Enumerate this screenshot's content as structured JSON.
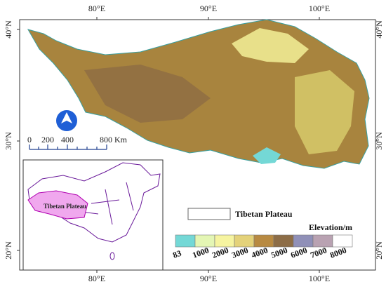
{
  "graticule": {
    "top": [
      "80°E",
      "90°E",
      "100°E"
    ],
    "bottom": [
      "80°E",
      "90°E",
      "100°E"
    ],
    "left": [
      "40°N",
      "30°N",
      "20°N"
    ],
    "right": [
      "40°N",
      "30°N",
      "20°N"
    ]
  },
  "scale_bar": {
    "labels": [
      "0",
      "200",
      "400",
      "800 Km"
    ]
  },
  "inset": {
    "label": "Tibetan Plateau"
  },
  "legend": {
    "boundary_label": "Tibetan Plateau",
    "elevation": {
      "title": "Elevation/m",
      "colors": [
        "#74d8d6",
        "#e4f6b4",
        "#f6f4a0",
        "#e4d27a",
        "#b88a42",
        "#8d6d47",
        "#9090b8",
        "#b9a2b2",
        "#ffffff"
      ],
      "breaks": [
        "83",
        "1000",
        "2000",
        "3000",
        "4000",
        "5000",
        "6000",
        "7000",
        "8000"
      ]
    }
  }
}
